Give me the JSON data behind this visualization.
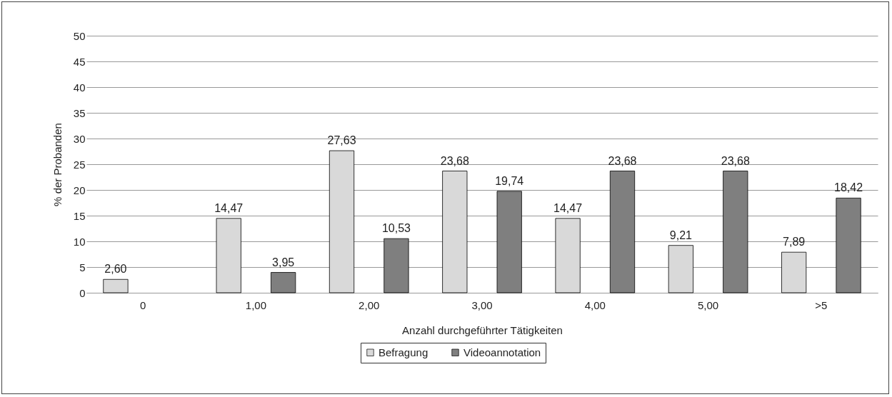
{
  "chart_data": {
    "type": "bar",
    "xlabel": "Anzahl durchgeführter Tätigkeiten",
    "ylabel": "% der Probanden",
    "categories": [
      "0",
      "1,00",
      "2,00",
      "3,00",
      "4,00",
      "5,00",
      ">5"
    ],
    "series": [
      {
        "name": "Befragung",
        "color": "#d9d9d9",
        "values": [
          2.6,
          14.47,
          27.63,
          23.68,
          14.47,
          9.21,
          7.89
        ],
        "value_labels": [
          "2,60",
          "14,47",
          "27,63",
          "23,68",
          "14,47",
          "9,21",
          "7,89"
        ]
      },
      {
        "name": "Videoannotation",
        "color": "#7f7f7f",
        "values": [
          null,
          3.95,
          10.53,
          19.74,
          23.68,
          23.68,
          18.42
        ],
        "value_labels": [
          null,
          "3,95",
          "10,53",
          "19,74",
          "23,68",
          "23,68",
          "18,42"
        ]
      }
    ],
    "ylim": [
      0,
      50
    ],
    "yticks": [
      0,
      5,
      10,
      15,
      20,
      25,
      30,
      35,
      40,
      45,
      50
    ],
    "grid": "y",
    "legend": "bottom"
  }
}
